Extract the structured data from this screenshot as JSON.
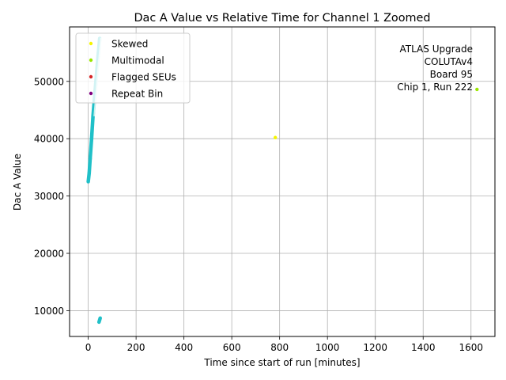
{
  "chart_data": {
    "type": "scatter",
    "title": "Dac A Value vs Relative Time for Channel 1 Zoomed",
    "xlabel": "Time since start of run [minutes]",
    "ylabel": "Dac A Value",
    "xlim": [
      -78,
      1700
    ],
    "ylim": [
      5500,
      59500
    ],
    "xticks": [
      0,
      200,
      400,
      600,
      800,
      1000,
      1200,
      1400,
      1600
    ],
    "yticks": [
      10000,
      20000,
      30000,
      40000,
      50000
    ],
    "grid": true,
    "legend_position": "top-left",
    "annotation": [
      "ATLAS Upgrade",
      "COLUTAv4",
      "Board 95",
      "Chip 1, Run 222"
    ],
    "main_trace": {
      "color": "#20c0c8",
      "highlight_color": "#c8f0ee",
      "segments": [
        {
          "x": [
            0,
            4
          ],
          "y": [
            32500,
            34000
          ]
        },
        {
          "x": [
            4,
            8
          ],
          "y": [
            34000,
            36500
          ]
        },
        {
          "x": [
            8,
            14
          ],
          "y": [
            36500,
            40000
          ]
        },
        {
          "x": [
            14,
            20
          ],
          "y": [
            40000,
            44000
          ]
        },
        {
          "x": [
            20,
            28
          ],
          "y": [
            44000,
            48000
          ]
        },
        {
          "x": [
            28,
            38
          ],
          "y": [
            48000,
            53000
          ]
        },
        {
          "x": [
            38,
            48
          ],
          "y": [
            53000,
            57500
          ]
        }
      ],
      "low_cluster": {
        "x": [
          45,
          50
        ],
        "y": [
          8000,
          8700
        ]
      }
    },
    "series": [
      {
        "name": "Skewed",
        "color": "#f5f500",
        "points": [
          {
            "x": 782,
            "y": 40200
          }
        ]
      },
      {
        "name": "Multimodal",
        "color": "#9ae600",
        "points": [
          {
            "x": 1625,
            "y": 48600
          }
        ]
      },
      {
        "name": "Flagged SEUs",
        "color": "#d62728",
        "points": []
      },
      {
        "name": "Repeat Bin",
        "color": "#800080",
        "points": []
      }
    ]
  }
}
